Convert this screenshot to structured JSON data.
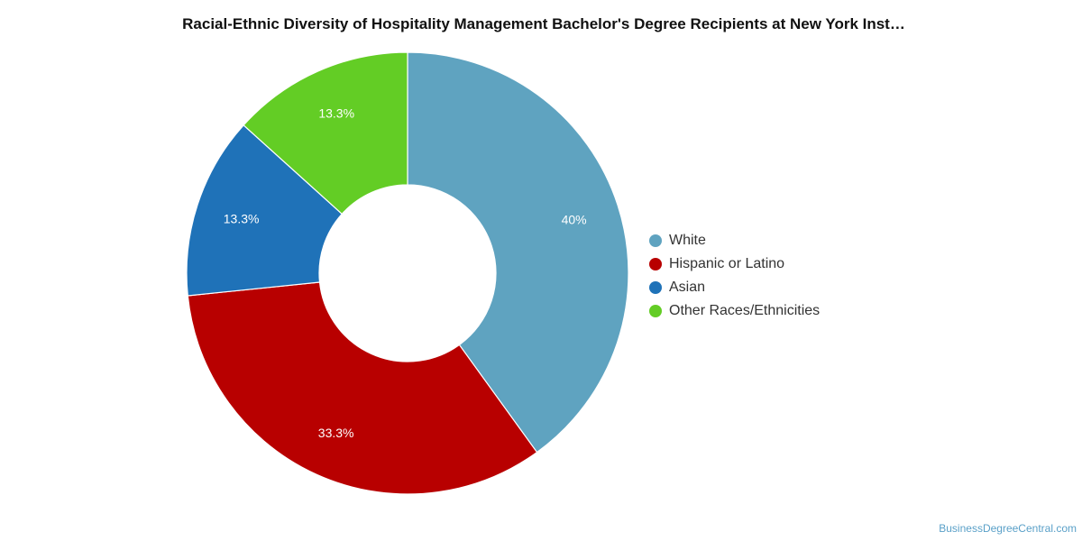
{
  "title": "Racial-Ethnic Diversity of Hospitality Management Bachelor's Degree Recipients at New York Inst…",
  "credit": "BusinessDegreeCentral.com",
  "chart_data": {
    "type": "pie",
    "donut": true,
    "categories": [
      "White",
      "Hispanic or Latino",
      "Asian",
      "Other Races/Ethnicities"
    ],
    "values": [
      40,
      33.3,
      13.3,
      13.3
    ],
    "labels": [
      "40%",
      "33.3%",
      "13.3%",
      "13.3%"
    ],
    "colors": [
      "#5fa3c0",
      "#b80000",
      "#1f72b8",
      "#63cd25"
    ],
    "legend_position": "right"
  }
}
